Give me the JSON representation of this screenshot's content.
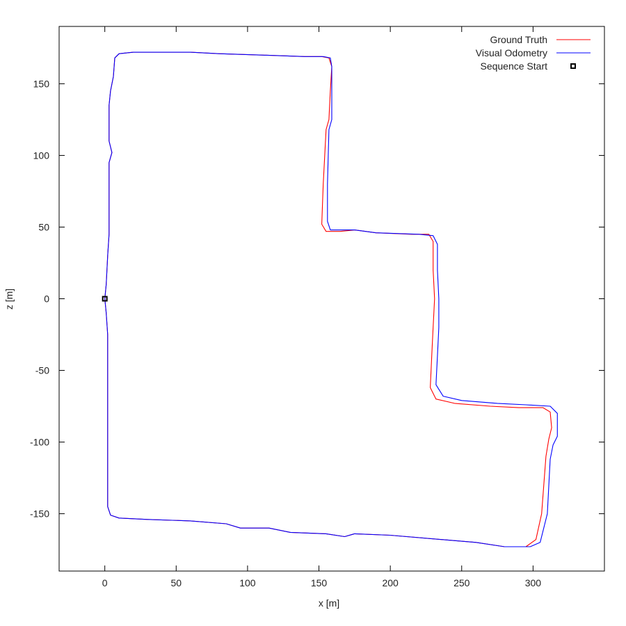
{
  "chart_data": {
    "type": "line",
    "title": "",
    "xlabel": "x [m]",
    "ylabel": "z [m]",
    "xlim": [
      -32,
      350
    ],
    "ylim": [
      -190,
      190
    ],
    "xticks": [
      0,
      50,
      100,
      150,
      200,
      250,
      300
    ],
    "yticks": [
      -150,
      -100,
      -50,
      0,
      50,
      100,
      150
    ],
    "grid": false,
    "legend_position": "top-right",
    "series": [
      {
        "name": "Ground Truth",
        "color": "#ff0000",
        "points": [
          [
            0,
            0
          ],
          [
            1,
            -10
          ],
          [
            2,
            -25
          ],
          [
            2,
            -60
          ],
          [
            2,
            -100
          ],
          [
            2,
            -145
          ],
          [
            4,
            -151
          ],
          [
            10,
            -153
          ],
          [
            30,
            -154
          ],
          [
            60,
            -155
          ],
          [
            85,
            -157
          ],
          [
            95,
            -160
          ],
          [
            115,
            -160
          ],
          [
            130,
            -163
          ],
          [
            155,
            -164
          ],
          [
            168,
            -166
          ],
          [
            175,
            -164
          ],
          [
            200,
            -165
          ],
          [
            260,
            -170
          ],
          [
            280,
            -173
          ],
          [
            295,
            -173
          ],
          [
            302,
            -168
          ],
          [
            306,
            -150
          ],
          [
            309,
            -110
          ],
          [
            311,
            -98
          ],
          [
            313,
            -90
          ],
          [
            312,
            -79
          ],
          [
            307,
            -76
          ],
          [
            290,
            -76
          ],
          [
            270,
            -75
          ],
          [
            245,
            -73
          ],
          [
            232,
            -70
          ],
          [
            228,
            -62
          ],
          [
            229,
            -40
          ],
          [
            230,
            -20
          ],
          [
            231,
            0
          ],
          [
            230,
            20
          ],
          [
            230,
            40
          ],
          [
            227,
            45
          ],
          [
            215,
            45
          ],
          [
            190,
            46
          ],
          [
            175,
            48
          ],
          [
            165,
            47
          ],
          [
            155,
            47
          ],
          [
            152,
            52
          ],
          [
            153,
            80
          ],
          [
            155,
            118
          ],
          [
            157,
            125
          ],
          [
            158,
            145
          ],
          [
            159,
            162
          ],
          [
            157,
            168
          ],
          [
            152,
            169
          ],
          [
            140,
            169
          ],
          [
            110,
            170
          ],
          [
            80,
            171
          ],
          [
            60,
            172
          ],
          [
            40,
            172
          ],
          [
            20,
            172
          ],
          [
            10,
            171
          ],
          [
            7,
            168
          ],
          [
            6,
            155
          ],
          [
            4,
            145
          ],
          [
            3,
            135
          ],
          [
            3,
            110
          ],
          [
            5,
            102
          ],
          [
            3,
            95
          ],
          [
            3,
            60
          ],
          [
            3,
            45
          ],
          [
            2,
            30
          ],
          [
            1,
            10
          ],
          [
            0,
            0
          ]
        ]
      },
      {
        "name": "Visual Odometry",
        "color": "#0000ff",
        "points": [
          [
            0,
            0
          ],
          [
            1,
            -10
          ],
          [
            2,
            -25
          ],
          [
            2,
            -60
          ],
          [
            2,
            -100
          ],
          [
            2,
            -145
          ],
          [
            4,
            -151
          ],
          [
            10,
            -153
          ],
          [
            30,
            -154
          ],
          [
            60,
            -155
          ],
          [
            85,
            -157
          ],
          [
            95,
            -160
          ],
          [
            115,
            -160
          ],
          [
            130,
            -163
          ],
          [
            155,
            -164
          ],
          [
            168,
            -166
          ],
          [
            175,
            -164
          ],
          [
            200,
            -165
          ],
          [
            260,
            -170
          ],
          [
            280,
            -173
          ],
          [
            298,
            -173
          ],
          [
            305,
            -170
          ],
          [
            310,
            -150
          ],
          [
            312,
            -112
          ],
          [
            314,
            -102
          ],
          [
            317,
            -96
          ],
          [
            317,
            -80
          ],
          [
            312,
            -75
          ],
          [
            295,
            -74
          ],
          [
            275,
            -73
          ],
          [
            250,
            -71
          ],
          [
            237,
            -68
          ],
          [
            232,
            -60
          ],
          [
            233,
            -40
          ],
          [
            234,
            -20
          ],
          [
            234,
            0
          ],
          [
            233,
            20
          ],
          [
            233,
            38
          ],
          [
            230,
            44
          ],
          [
            220,
            45
          ],
          [
            190,
            46
          ],
          [
            175,
            48
          ],
          [
            165,
            48
          ],
          [
            158,
            48
          ],
          [
            156,
            54
          ],
          [
            156,
            80
          ],
          [
            157,
            118
          ],
          [
            159,
            125
          ],
          [
            159,
            145
          ],
          [
            159,
            162
          ],
          [
            158,
            168
          ],
          [
            153,
            169
          ],
          [
            140,
            169
          ],
          [
            110,
            170
          ],
          [
            80,
            171
          ],
          [
            60,
            172
          ],
          [
            40,
            172
          ],
          [
            20,
            172
          ],
          [
            10,
            171
          ],
          [
            7,
            168
          ],
          [
            6,
            155
          ],
          [
            4,
            145
          ],
          [
            3,
            135
          ],
          [
            3,
            110
          ],
          [
            5,
            102
          ],
          [
            3,
            95
          ],
          [
            3,
            60
          ],
          [
            3,
            45
          ],
          [
            2,
            30
          ],
          [
            1,
            10
          ],
          [
            0,
            0
          ]
        ]
      },
      {
        "name": "Sequence Start",
        "color": "#000000",
        "marker": "square",
        "points": [
          [
            0,
            0
          ]
        ]
      }
    ]
  }
}
